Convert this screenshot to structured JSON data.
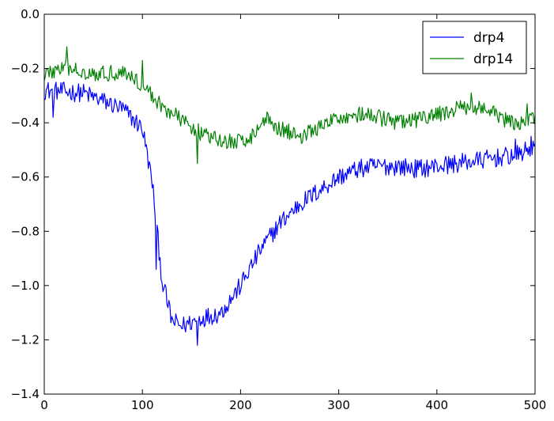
{
  "chart_data": {
    "type": "line",
    "title": "",
    "xlabel": "",
    "ylabel": "",
    "xlim": [
      0,
      500
    ],
    "ylim": [
      -1.4,
      0.0
    ],
    "x_ticks": [
      0,
      100,
      200,
      300,
      400,
      500
    ],
    "x_tick_labels": [
      "0",
      "100",
      "200",
      "300",
      "400",
      "500"
    ],
    "y_ticks": [
      0.0,
      -0.2,
      -0.4,
      -0.6,
      -0.8,
      -1.0,
      -1.2,
      -1.4
    ],
    "y_tick_labels": [
      "0.0",
      "−0.2",
      "−0.4",
      "−0.6",
      "−0.8",
      "−1.0",
      "−1.2",
      "−1.4"
    ],
    "grid": false,
    "legend": {
      "placement": "top-right"
    },
    "x": {
      "start": 0,
      "step": 1,
      "count": 501
    },
    "series": [
      {
        "name": "drp4",
        "color": "#0000ff",
        "trend": [
          [
            0,
            -0.28
          ],
          [
            40,
            -0.29
          ],
          [
            80,
            -0.35
          ],
          [
            100,
            -0.42
          ],
          [
            110,
            -0.62
          ],
          [
            120,
            -0.98
          ],
          [
            130,
            -1.13
          ],
          [
            140,
            -1.15
          ],
          [
            160,
            -1.12
          ],
          [
            180,
            -1.1
          ],
          [
            200,
            -1.0
          ],
          [
            220,
            -0.87
          ],
          [
            240,
            -0.77
          ],
          [
            260,
            -0.7
          ],
          [
            280,
            -0.65
          ],
          [
            300,
            -0.6
          ],
          [
            320,
            -0.57
          ],
          [
            340,
            -0.56
          ],
          [
            360,
            -0.56
          ],
          [
            380,
            -0.57
          ],
          [
            400,
            -0.56
          ],
          [
            420,
            -0.55
          ],
          [
            440,
            -0.54
          ],
          [
            460,
            -0.53
          ],
          [
            480,
            -0.52
          ],
          [
            500,
            -0.49
          ]
        ],
        "noise": 0.035,
        "spikes": [
          [
            9,
            -0.38
          ],
          [
            114,
            -0.94
          ],
          [
            156,
            -1.22
          ],
          [
            480,
            -0.46
          ],
          [
            496,
            -0.45
          ]
        ]
      },
      {
        "name": "drp14",
        "color": "#008000",
        "trend": [
          [
            0,
            -0.22
          ],
          [
            20,
            -0.2
          ],
          [
            60,
            -0.22
          ],
          [
            80,
            -0.21
          ],
          [
            100,
            -0.26
          ],
          [
            120,
            -0.34
          ],
          [
            140,
            -0.39
          ],
          [
            160,
            -0.44
          ],
          [
            180,
            -0.47
          ],
          [
            200,
            -0.47
          ],
          [
            215,
            -0.44
          ],
          [
            225,
            -0.38
          ],
          [
            240,
            -0.42
          ],
          [
            260,
            -0.45
          ],
          [
            280,
            -0.42
          ],
          [
            300,
            -0.38
          ],
          [
            320,
            -0.37
          ],
          [
            340,
            -0.38
          ],
          [
            360,
            -0.4
          ],
          [
            380,
            -0.39
          ],
          [
            400,
            -0.37
          ],
          [
            420,
            -0.35
          ],
          [
            440,
            -0.34
          ],
          [
            460,
            -0.37
          ],
          [
            480,
            -0.41
          ],
          [
            500,
            -0.38
          ]
        ],
        "noise": 0.03,
        "spikes": [
          [
            23,
            -0.12
          ],
          [
            100,
            -0.17
          ],
          [
            156,
            -0.55
          ],
          [
            435,
            -0.29
          ],
          [
            492,
            -0.33
          ]
        ]
      }
    ]
  }
}
